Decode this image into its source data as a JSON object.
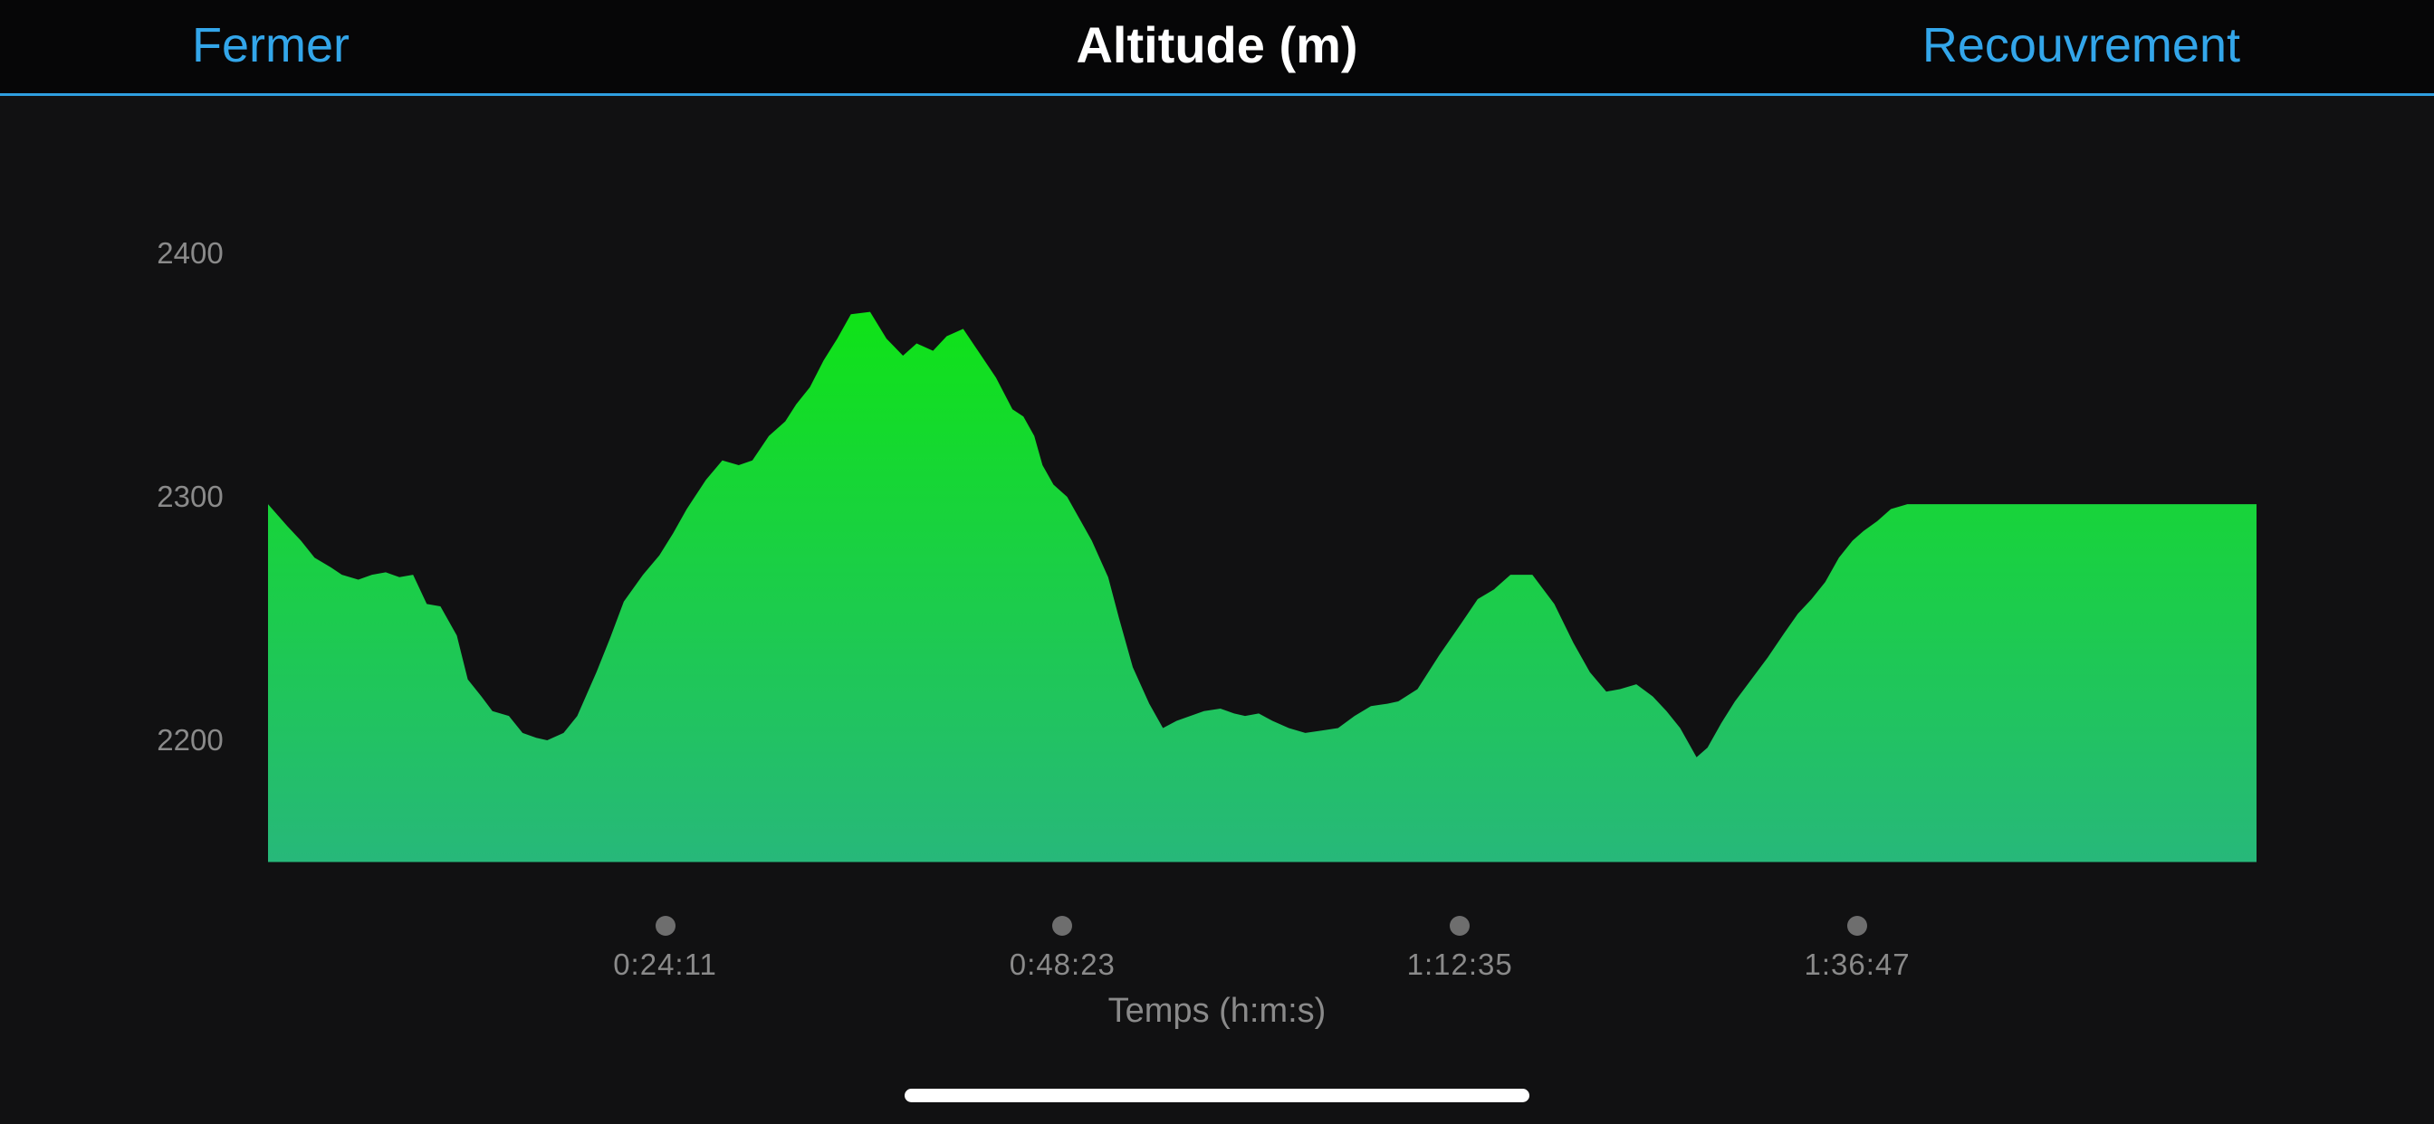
{
  "header": {
    "close_label": "Fermer",
    "title": "Altitude (m)",
    "overlay_label": "Recouvrement",
    "accent_color": "#33a6ea"
  },
  "chart_data": {
    "type": "area",
    "title": "Altitude (m)",
    "xlabel": "Temps (h:m:s)",
    "ylabel": "",
    "y_ticks": [
      2200,
      2300,
      2400
    ],
    "x_ticks": [
      {
        "label": "0:24:11",
        "seconds": 1451
      },
      {
        "label": "0:48:23",
        "seconds": 2903
      },
      {
        "label": "1:12:35",
        "seconds": 4355
      },
      {
        "label": "1:36:47",
        "seconds": 5807
      }
    ],
    "xlim_seconds": [
      0,
      7266
    ],
    "ylim": [
      2150,
      2400
    ],
    "grid": false,
    "fill_gradient": [
      "#0fe317",
      "#27b87a"
    ],
    "series": [
      {
        "x_seconds": [
          0,
          70,
          120,
          170,
          230,
          270,
          330,
          380,
          430,
          480,
          530,
          580,
          630,
          690,
          730,
          780,
          820,
          880,
          930,
          980,
          1020,
          1080,
          1130,
          1200,
          1250,
          1300,
          1370,
          1430,
          1480,
          1530,
          1600,
          1660,
          1720,
          1770,
          1830,
          1890,
          1930,
          1980,
          2030,
          2080,
          2130,
          2200,
          2260,
          2320,
          2370,
          2430,
          2480,
          2540,
          2600,
          2660,
          2720,
          2760,
          2800,
          2830,
          2870,
          2920,
          2960,
          3010,
          3070,
          3110,
          3160,
          3220,
          3270,
          3320,
          3370,
          3420,
          3480,
          3530,
          3570,
          3620,
          3670,
          3730,
          3790,
          3850,
          3910,
          3970,
          4030,
          4090,
          4130,
          4200,
          4280,
          4360,
          4420,
          4480,
          4540,
          4620,
          4700,
          4770,
          4830,
          4890,
          4940,
          5000,
          5060,
          5110,
          5160,
          5220,
          5260,
          5310,
          5360,
          5420,
          5480,
          5540,
          5590,
          5640,
          5690,
          5740,
          5790,
          5830,
          5880,
          5930,
          5990,
          6050,
          6100,
          6150,
          6190,
          6240,
          6290,
          6330,
          6370,
          6420,
          6460,
          6500,
          6560,
          6620,
          6680,
          6720,
          6760,
          6800,
          6860,
          6920,
          6970,
          7010,
          7060,
          7100,
          7150,
          7200,
          7266
        ],
        "y": [
          2297,
          2288,
          2282,
          2275,
          2271,
          2268,
          2266,
          2268,
          2269,
          2267,
          2268,
          2256,
          2255,
          2243,
          2225,
          2218,
          2212,
          2210,
          2203,
          2201,
          2200,
          2203,
          2210,
          2228,
          2242,
          2257,
          2268,
          2276,
          2285,
          2295,
          2307,
          2315,
          2313,
          2315,
          2325,
          2331,
          2338,
          2345,
          2356,
          2365,
          2375,
          2376,
          2365,
          2358,
          2363,
          2360,
          2366,
          2369,
          2359,
          2349,
          2336,
          2333,
          2325,
          2313,
          2305,
          2300,
          2292,
          2282,
          2267,
          2250,
          2230,
          2215,
          2205,
          2208,
          2210,
          2212,
          2213,
          2211,
          2210,
          2211,
          2208,
          2205,
          2203,
          2204,
          2205,
          2210,
          2214,
          2215,
          2216,
          2221,
          2235,
          2248,
          2258,
          2262,
          2268,
          2268,
          2256,
          2240,
          2228,
          2220,
          2221,
          2223,
          2218,
          2212,
          2205,
          2193,
          2197,
          2207,
          2216,
          2225,
          2234,
          2244,
          2252,
          2258,
          2265,
          2275,
          2282,
          2286,
          2290,
          2295,
          2297,
          2297,
          2297,
          2297,
          2297,
          2297,
          2297,
          2297,
          2297,
          2297,
          2297,
          2297,
          2297,
          2297,
          2297,
          2297,
          2297,
          2297,
          2297,
          2297,
          2297,
          2297,
          2297,
          2297,
          2297,
          2297,
          2297
        ]
      }
    ]
  }
}
